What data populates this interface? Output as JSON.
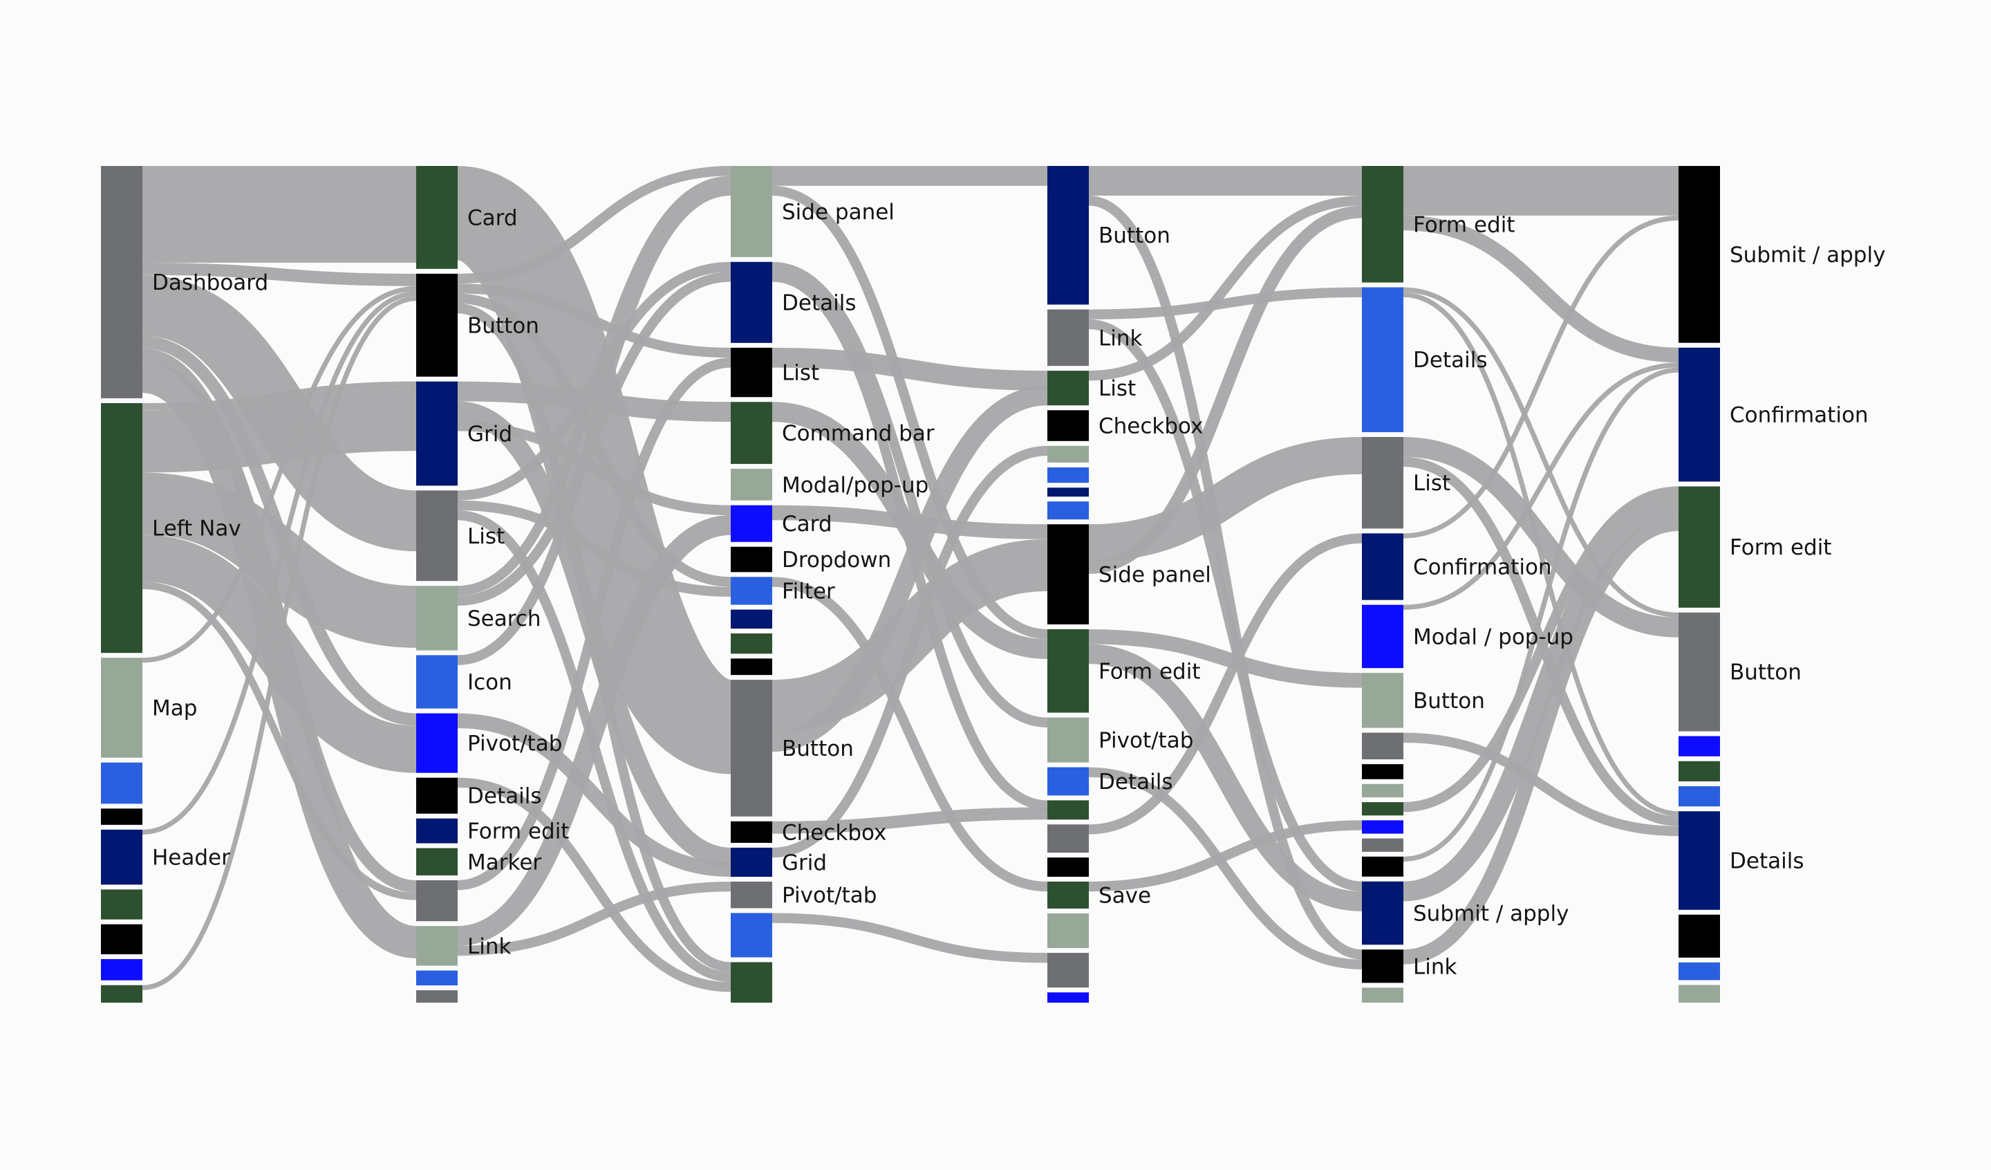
{
  "palette": {
    "dark-green": "#2d5130",
    "gray": "#6e6f73",
    "sage": "#97a898",
    "black": "#000000",
    "navy": "#001871",
    "royal": "#2a5fe0",
    "bright-blue": "#0e0cff",
    "link": "#a6a7a9",
    "background": "#fbfbfb"
  },
  "columns": [
    {
      "nodes": [
        {
          "label": "Dashboard",
          "value": 18.6,
          "color": "gray"
        },
        {
          "label": "Left Nav",
          "value": 20,
          "color": "dark-green"
        },
        {
          "label": "Map",
          "value": 8,
          "color": "sage"
        },
        {
          "label": "",
          "value": 3.3,
          "color": "royal"
        },
        {
          "label": "",
          "value": 1.3,
          "color": "black"
        },
        {
          "label": "Header",
          "value": 4.4,
          "color": "navy"
        },
        {
          "label": "",
          "value": 2.4,
          "color": "dark-green"
        },
        {
          "label": "",
          "value": 2.4,
          "color": "black"
        },
        {
          "label": "",
          "value": 1.7,
          "color": "bright-blue"
        },
        {
          "label": "",
          "value": 1.4,
          "color": "dark-green"
        }
      ]
    },
    {
      "nodes": [
        {
          "label": "Card",
          "value": 8.3,
          "color": "dark-green"
        },
        {
          "label": "Button",
          "value": 8.3,
          "color": "black"
        },
        {
          "label": "Grid",
          "value": 8.4,
          "color": "navy"
        },
        {
          "label": "List",
          "value": 7.3,
          "color": "gray"
        },
        {
          "label": "Search",
          "value": 5.2,
          "color": "sage"
        },
        {
          "label": "Icon",
          "value": 4.3,
          "color": "royal"
        },
        {
          "label": "Pivot/tab",
          "value": 4.8,
          "color": "bright-blue"
        },
        {
          "label": "Details",
          "value": 2.9,
          "color": "black"
        },
        {
          "label": "Form edit",
          "value": 2.0,
          "color": "navy"
        },
        {
          "label": "Marker",
          "value": 2.2,
          "color": "dark-green"
        },
        {
          "label": "",
          "value": 3.3,
          "color": "gray"
        },
        {
          "label": "Link",
          "value": 3.2,
          "color": "sage"
        },
        {
          "label": "",
          "value": 1.2,
          "color": "royal"
        },
        {
          "label": "",
          "value": 1.0,
          "color": "gray"
        }
      ]
    },
    {
      "nodes": [
        {
          "label": "Side panel",
          "value": 7.2,
          "color": "sage"
        },
        {
          "label": "Details",
          "value": 6.4,
          "color": "navy"
        },
        {
          "label": "List",
          "value": 3.9,
          "color": "black"
        },
        {
          "label": "Command bar",
          "value": 4.9,
          "color": "dark-green"
        },
        {
          "label": "Modal/pop-up",
          "value": 2.5,
          "color": "sage"
        },
        {
          "label": "Card",
          "value": 2.9,
          "color": "bright-blue"
        },
        {
          "label": "Dropdown",
          "value": 2.0,
          "color": "black"
        },
        {
          "label": "Filter",
          "value": 2.2,
          "color": "royal"
        },
        {
          "label": "",
          "value": 1.5,
          "color": "navy"
        },
        {
          "label": "",
          "value": 1.6,
          "color": "dark-green"
        },
        {
          "label": "",
          "value": 1.3,
          "color": "black"
        },
        {
          "label": "Button",
          "value": 10.8,
          "color": "gray"
        },
        {
          "label": "Checkbox",
          "value": 1.7,
          "color": "black"
        },
        {
          "label": "Grid",
          "value": 2.3,
          "color": "navy"
        },
        {
          "label": "Pivot/tab",
          "value": 2.1,
          "color": "gray"
        },
        {
          "label": "",
          "value": 3.5,
          "color": "royal"
        },
        {
          "label": "",
          "value": 3.2,
          "color": "dark-green"
        }
      ]
    },
    {
      "nodes": [
        {
          "label": "Button",
          "value": 10.8,
          "color": "navy"
        },
        {
          "label": "Link",
          "value": 4.4,
          "color": "gray"
        },
        {
          "label": "List",
          "value": 2.7,
          "color": "dark-green"
        },
        {
          "label": "Checkbox",
          "value": 2.4,
          "color": "black"
        },
        {
          "label": "",
          "value": 1.3,
          "color": "sage"
        },
        {
          "label": "",
          "value": 1.2,
          "color": "royal"
        },
        {
          "label": "",
          "value": 0.7,
          "color": "navy"
        },
        {
          "label": "",
          "value": 1.4,
          "color": "royal"
        },
        {
          "label": "Side panel",
          "value": 7.8,
          "color": "black"
        },
        {
          "label": "Form edit",
          "value": 6.5,
          "color": "dark-green"
        },
        {
          "label": "Pivot/tab",
          "value": 3.5,
          "color": "sage"
        },
        {
          "label": "Details",
          "value": 2.2,
          "color": "royal"
        },
        {
          "label": "",
          "value": 1.5,
          "color": "dark-green"
        },
        {
          "label": "",
          "value": 2.2,
          "color": "gray"
        },
        {
          "label": "",
          "value": 1.5,
          "color": "black"
        },
        {
          "label": "Save",
          "value": 2.1,
          "color": "dark-green"
        },
        {
          "label": "",
          "value": 2.7,
          "color": "sage"
        },
        {
          "label": "",
          "value": 2.7,
          "color": "gray"
        },
        {
          "label": "",
          "value": 0.8,
          "color": "bright-blue"
        }
      ]
    },
    {
      "nodes": [
        {
          "label": "Form edit",
          "value": 7.0,
          "color": "dark-green"
        },
        {
          "label": "Details",
          "value": 8.7,
          "color": "royal"
        },
        {
          "label": "List",
          "value": 5.5,
          "color": "gray"
        },
        {
          "label": "Confirmation",
          "value": 4.0,
          "color": "navy"
        },
        {
          "label": "Modal / pop-up",
          "value": 3.8,
          "color": "bright-blue"
        },
        {
          "label": "Button",
          "value": 3.3,
          "color": "sage"
        },
        {
          "label": "",
          "value": 1.6,
          "color": "gray"
        },
        {
          "label": "",
          "value": 0.9,
          "color": "black"
        },
        {
          "label": "",
          "value": 0.8,
          "color": "sage"
        },
        {
          "label": "",
          "value": 0.8,
          "color": "dark-green"
        },
        {
          "label": "",
          "value": 0.8,
          "color": "bright-blue"
        },
        {
          "label": "",
          "value": 0.8,
          "color": "gray"
        },
        {
          "label": "",
          "value": 1.2,
          "color": "black"
        },
        {
          "label": "Submit / apply",
          "value": 3.8,
          "color": "navy"
        },
        {
          "label": "Link",
          "value": 2.0,
          "color": "black"
        },
        {
          "label": "",
          "value": 0.9,
          "color": "sage"
        }
      ]
    },
    {
      "nodes": [
        {
          "label": "Submit / apply",
          "value": 7.0,
          "color": "black"
        },
        {
          "label": "Confirmation",
          "value": 5.3,
          "color": "navy"
        },
        {
          "label": "Form edit",
          "value": 4.8,
          "color": "dark-green"
        },
        {
          "label": "Button",
          "value": 4.7,
          "color": "gray"
        },
        {
          "label": "",
          "value": 0.8,
          "color": "bright-blue"
        },
        {
          "label": "",
          "value": 0.8,
          "color": "dark-green"
        },
        {
          "label": "",
          "value": 0.8,
          "color": "royal"
        },
        {
          "label": "Details",
          "value": 3.9,
          "color": "navy"
        },
        {
          "label": "",
          "value": 1.7,
          "color": "black"
        },
        {
          "label": "",
          "value": 0.7,
          "color": "royal"
        },
        {
          "label": "",
          "value": 0.7,
          "color": "sage"
        }
      ]
    }
  ],
  "links": [
    {
      "source": [
        0,
        0
      ],
      "target": [
        1,
        0
      ],
      "value": 7.8
    },
    {
      "source": [
        0,
        0
      ],
      "target": [
        1,
        1
      ],
      "value": 1.0
    },
    {
      "source": [
        0,
        0
      ],
      "target": [
        1,
        3
      ],
      "value": 4.9
    },
    {
      "source": [
        0,
        0
      ],
      "target": [
        1,
        6
      ],
      "value": 1.0
    },
    {
      "source": [
        0,
        0
      ],
      "target": [
        1,
        10
      ],
      "value": 1.0
    },
    {
      "source": [
        0,
        0
      ],
      "target": [
        1,
        11
      ],
      "value": 2.6
    },
    {
      "source": [
        0,
        1
      ],
      "target": [
        1,
        2
      ],
      "value": 0.6
    },
    {
      "source": [
        0,
        1
      ],
      "target": [
        1,
        2
      ],
      "value": 5.0
    },
    {
      "source": [
        0,
        1
      ],
      "target": [
        1,
        4
      ],
      "value": 5.0
    },
    {
      "source": [
        0,
        1
      ],
      "target": [
        1,
        6
      ],
      "value": 3.8
    },
    {
      "source": [
        0,
        1
      ],
      "target": [
        1,
        10
      ],
      "value": 0.6
    },
    {
      "source": [
        0,
        2
      ],
      "target": [
        1,
        1
      ],
      "value": 0.4
    },
    {
      "source": [
        0,
        5
      ],
      "target": [
        1,
        1
      ],
      "value": 0.4
    },
    {
      "source": [
        0,
        9
      ],
      "target": [
        1,
        1
      ],
      "value": 0.4
    },
    {
      "source": [
        1,
        0
      ],
      "target": [
        2,
        11
      ],
      "value": 7.6
    },
    {
      "source": [
        1,
        1
      ],
      "target": [
        2,
        0
      ],
      "value": 0.8
    },
    {
      "source": [
        1,
        1
      ],
      "target": [
        2,
        2
      ],
      "value": 0.8
    },
    {
      "source": [
        1,
        1
      ],
      "target": [
        2,
        7
      ],
      "value": 0.8
    },
    {
      "source": [
        1,
        1
      ],
      "target": [
        2,
        16
      ],
      "value": 0.8
    },
    {
      "source": [
        1,
        2
      ],
      "target": [
        2,
        3
      ],
      "value": 1.6
    },
    {
      "source": [
        1,
        2
      ],
      "target": [
        2,
        13
      ],
      "value": 1.6
    },
    {
      "source": [
        1,
        2
      ],
      "target": [
        2,
        5
      ],
      "value": 0.8
    },
    {
      "source": [
        1,
        3
      ],
      "target": [
        2,
        1
      ],
      "value": 0.8
    },
    {
      "source": [
        1,
        3
      ],
      "target": [
        2,
        7
      ],
      "value": 0.8
    },
    {
      "source": [
        1,
        3
      ],
      "target": [
        2,
        16
      ],
      "value": 0.8
    },
    {
      "source": [
        1,
        4
      ],
      "target": [
        2,
        0
      ],
      "value": 0.8
    },
    {
      "source": [
        1,
        4
      ],
      "target": [
        2,
        1
      ],
      "value": 0.8
    },
    {
      "source": [
        1,
        5
      ],
      "target": [
        2,
        0
      ],
      "value": 0.8
    },
    {
      "source": [
        1,
        6
      ],
      "target": [
        2,
        13
      ],
      "value": 1.2
    },
    {
      "source": [
        1,
        7
      ],
      "target": [
        2,
        16
      ],
      "value": 0.8
    },
    {
      "source": [
        1,
        10
      ],
      "target": [
        2,
        2
      ],
      "value": 0.8
    },
    {
      "source": [
        1,
        11
      ],
      "target": [
        2,
        5
      ],
      "value": 1.6
    },
    {
      "source": [
        1,
        11
      ],
      "target": [
        2,
        14
      ],
      "value": 0.8
    },
    {
      "source": [
        2,
        0
      ],
      "target": [
        3,
        0
      ],
      "value": 1.6
    },
    {
      "source": [
        2,
        0
      ],
      "target": [
        3,
        9
      ],
      "value": 0.8
    },
    {
      "source": [
        2,
        1
      ],
      "target": [
        3,
        10
      ],
      "value": 0.8
    },
    {
      "source": [
        2,
        1
      ],
      "target": [
        3,
        12
      ],
      "value": 0.8
    },
    {
      "source": [
        2,
        2
      ],
      "target": [
        3,
        2
      ],
      "value": 1.6
    },
    {
      "source": [
        2,
        3
      ],
      "target": [
        3,
        9
      ],
      "value": 1.6
    },
    {
      "source": [
        2,
        5
      ],
      "target": [
        3,
        8
      ],
      "value": 1.2
    },
    {
      "source": [
        2,
        7
      ],
      "target": [
        3,
        15
      ],
      "value": 0.8
    },
    {
      "source": [
        2,
        11
      ],
      "target": [
        3,
        8
      ],
      "value": 4.2
    },
    {
      "source": [
        2,
        11
      ],
      "target": [
        3,
        2
      ],
      "value": 1.6
    },
    {
      "source": [
        2,
        12
      ],
      "target": [
        3,
        12
      ],
      "value": 1.0
    },
    {
      "source": [
        2,
        13
      ],
      "target": [
        3,
        4
      ],
      "value": 0.8
    },
    {
      "source": [
        2,
        15
      ],
      "target": [
        3,
        17
      ],
      "value": 0.8
    },
    {
      "source": [
        3,
        0
      ],
      "target": [
        4,
        0
      ],
      "value": 2.4
    },
    {
      "source": [
        3,
        0
      ],
      "target": [
        4,
        14
      ],
      "value": 0.8
    },
    {
      "source": [
        3,
        1
      ],
      "target": [
        4,
        1
      ],
      "value": 0.8
    },
    {
      "source": [
        3,
        1
      ],
      "target": [
        4,
        13
      ],
      "value": 0.8
    },
    {
      "source": [
        3,
        2
      ],
      "target": [
        4,
        0
      ],
      "value": 0.8
    },
    {
      "source": [
        3,
        8
      ],
      "target": [
        4,
        2
      ],
      "value": 3.0
    },
    {
      "source": [
        3,
        8
      ],
      "target": [
        4,
        0
      ],
      "value": 1.0
    },
    {
      "source": [
        3,
        9
      ],
      "target": [
        4,
        5
      ],
      "value": 1.2
    },
    {
      "source": [
        3,
        9
      ],
      "target": [
        4,
        13
      ],
      "value": 1.6
    },
    {
      "source": [
        3,
        11
      ],
      "target": [
        4,
        14
      ],
      "value": 0.8
    },
    {
      "source": [
        3,
        13
      ],
      "target": [
        4,
        3
      ],
      "value": 0.8
    },
    {
      "source": [
        3,
        15
      ],
      "target": [
        4,
        10
      ],
      "value": 0.8
    },
    {
      "source": [
        4,
        0
      ],
      "target": [
        5,
        0
      ],
      "value": 4.0
    },
    {
      "source": [
        4,
        0
      ],
      "target": [
        5,
        1
      ],
      "value": 1.2
    },
    {
      "source": [
        4,
        1
      ],
      "target": [
        5,
        3
      ],
      "value": 0.4
    },
    {
      "source": [
        4,
        1
      ],
      "target": [
        5,
        7
      ],
      "value": 0.4
    },
    {
      "source": [
        4,
        2
      ],
      "target": [
        5,
        3
      ],
      "value": 1.6
    },
    {
      "source": [
        4,
        2
      ],
      "target": [
        5,
        7
      ],
      "value": 0.8
    },
    {
      "source": [
        4,
        3
      ],
      "target": [
        5,
        0
      ],
      "value": 0.4
    },
    {
      "source": [
        4,
        4
      ],
      "target": [
        5,
        1
      ],
      "value": 0.4
    },
    {
      "source": [
        4,
        6
      ],
      "target": [
        5,
        7
      ],
      "value": 0.8
    },
    {
      "source": [
        4,
        9
      ],
      "target": [
        5,
        2
      ],
      "value": 0.8
    },
    {
      "source": [
        4,
        13
      ],
      "target": [
        5,
        2
      ],
      "value": 1.6
    },
    {
      "source": [
        4,
        14
      ],
      "target": [
        5,
        2
      ],
      "value": 1.2
    },
    {
      "source": [
        4,
        12
      ],
      "target": [
        5,
        1
      ],
      "value": 0.4
    }
  ]
}
